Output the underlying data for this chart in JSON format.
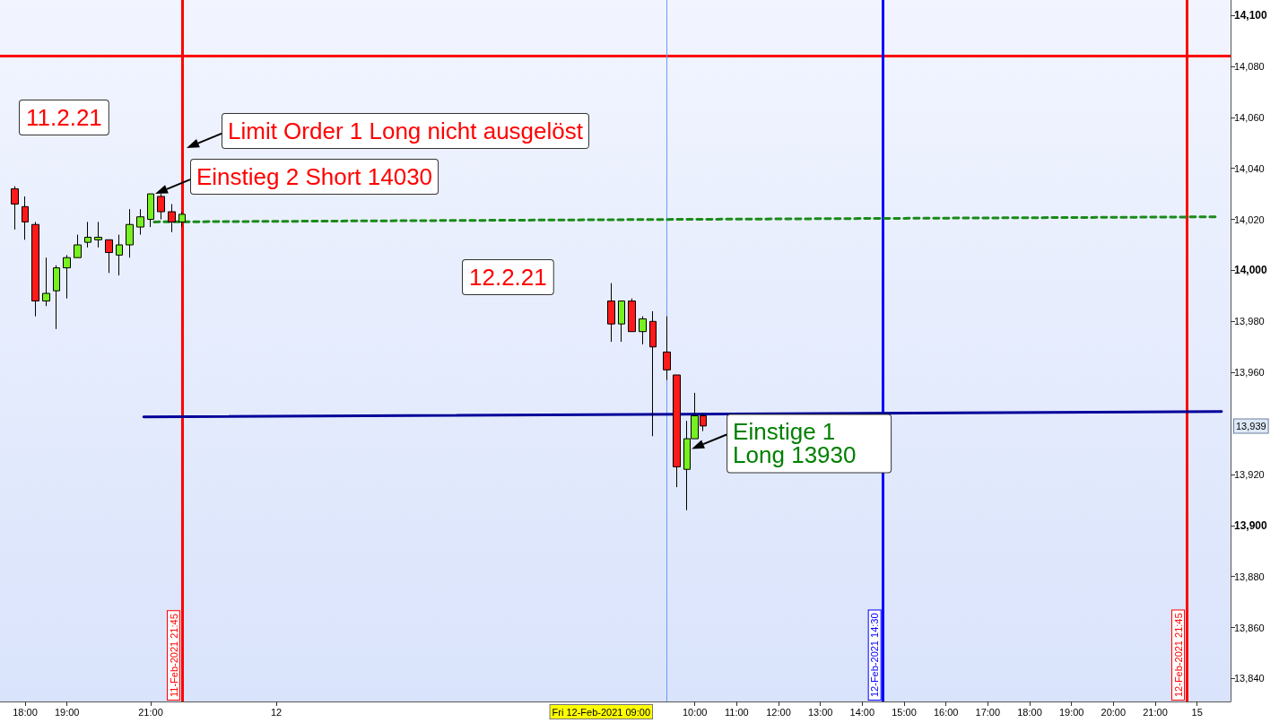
{
  "chart_data": {
    "type": "candlestick",
    "marker": "none",
    "xlim": [
      "2021-02-11T17:24",
      "2021-02-12T22:48"
    ],
    "xticks": [
      {
        "value": "2021-02-11T18:00",
        "label": "18:00"
      },
      {
        "value": "2021-02-11T19:00",
        "label": "19:00"
      },
      {
        "value": "2021-02-11T21:00",
        "label": "21:00"
      },
      {
        "value": "2021-02-12T00:00",
        "label": "12"
      },
      {
        "value": "2021-02-12T10:00",
        "label": "10:00"
      },
      {
        "value": "2021-02-12T11:00",
        "label": "11:00"
      },
      {
        "value": "2021-02-12T12:00",
        "label": "12:00"
      },
      {
        "value": "2021-02-12T13:00",
        "label": "13:00"
      },
      {
        "value": "2021-02-12T14:00",
        "label": "14:00"
      },
      {
        "value": "2021-02-12T15:00",
        "label": "15:00"
      },
      {
        "value": "2021-02-12T16:00",
        "label": "16:00"
      },
      {
        "value": "2021-02-12T17:00",
        "label": "17:00"
      },
      {
        "value": "2021-02-12T18:00",
        "label": "18:00"
      },
      {
        "value": "2021-02-12T19:00",
        "label": "19:00"
      },
      {
        "value": "2021-02-12T20:00",
        "label": "20:00"
      },
      {
        "value": "2021-02-12T21:00",
        "label": "21:00"
      },
      {
        "value": "2021-02-12T22:00",
        "label": "15"
      }
    ],
    "ylim": [
      13831,
      14106
    ],
    "yticks": [
      {
        "value": 13840,
        "label": "13,840"
      },
      {
        "value": 13860,
        "label": "13,860"
      },
      {
        "value": 13880,
        "label": "13,880"
      },
      {
        "value": 13900,
        "label": "13,900"
      },
      {
        "value": 13920,
        "label": "13,920"
      },
      {
        "value": 13960,
        "label": "13,960"
      },
      {
        "value": 13980,
        "label": "13,980"
      },
      {
        "value": 14000,
        "label": "14,000"
      },
      {
        "value": 14020,
        "label": "14,020"
      },
      {
        "value": 14040,
        "label": "14,040"
      },
      {
        "value": 14060,
        "label": "14,060"
      },
      {
        "value": 14080,
        "label": "14,080"
      },
      {
        "value": 14100,
        "label": "14,100"
      }
    ],
    "series": [
      {
        "x": [
          "2021-02-11T17:45",
          "2021-02-11T18:00",
          "2021-02-11T18:15",
          "2021-02-11T18:30",
          "2021-02-11T18:45",
          "2021-02-11T19:00",
          "2021-02-11T19:15",
          "2021-02-11T19:30",
          "2021-02-11T19:45",
          "2021-02-11T20:00",
          "2021-02-11T20:15",
          "2021-02-11T20:30",
          "2021-02-11T20:45",
          "2021-02-11T21:00",
          "2021-02-11T21:15",
          "2021-02-11T21:30",
          "2021-02-11T21:45",
          "2021-02-12T08:00",
          "2021-02-12T08:15",
          "2021-02-12T08:30",
          "2021-02-12T08:45",
          "2021-02-12T09:00",
          "2021-02-12T09:20",
          "2021-02-12T09:34",
          "2021-02-12T09:49",
          "2021-02-12T10:00",
          "2021-02-12T10:12"
        ],
        "ohlc": [
          [
            14032,
            14033,
            14016,
            14026
          ],
          [
            14025,
            14029,
            14012,
            14019
          ],
          [
            14018,
            14019,
            13982,
            13988
          ],
          [
            13988,
            14005,
            13986,
            13991
          ],
          [
            13992,
            14002,
            13977,
            14001
          ],
          [
            14001,
            14006,
            13989,
            14005
          ],
          [
            14005,
            14014,
            14005,
            14010
          ],
          [
            14011,
            14019,
            14009,
            14013
          ],
          [
            14012,
            14019,
            14009,
            14013
          ],
          [
            14012,
            14012,
            13999,
            14007
          ],
          [
            14006,
            14014,
            13998,
            14010
          ],
          [
            14010,
            14024,
            14005,
            14018
          ],
          [
            14017,
            14024,
            14014,
            14021
          ],
          [
            14020,
            14030,
            14017,
            14030
          ],
          [
            14029,
            14030,
            14020,
            14023
          ],
          [
            14023,
            14026,
            14015,
            14019
          ],
          [
            14019,
            14023,
            14017,
            14022
          ],
          [
            13988,
            13995,
            13972,
            13979
          ],
          [
            13979,
            13988,
            13972,
            13988
          ],
          [
            13988,
            13989,
            13976,
            13976
          ],
          [
            13976,
            13982,
            13971,
            13981
          ],
          [
            13980,
            13984,
            13935,
            13970
          ],
          [
            13968,
            13982,
            13957,
            13961
          ],
          [
            13959,
            13959,
            13915,
            13923
          ],
          [
            13922,
            13941,
            13906,
            13934
          ],
          [
            13934,
            13952,
            13934,
            13943
          ],
          [
            13943,
            13944,
            13937,
            13939
          ]
        ],
        "colors": [
          "#ff1a1a",
          "#ff1a1a",
          "#ff1a1a",
          "#77f020",
          "#77f020",
          "#77f020",
          "#77f020",
          "#77f020",
          "#77f020",
          "#ff1a1a",
          "#77f020",
          "#77f020",
          "#77f020",
          "#77f020",
          "#ff1a1a",
          "#ff1a1a",
          "#77f020",
          "#ff1a1a",
          "#77f020",
          "#ff1a1a",
          "#77f020",
          "#ff1a1a",
          "#ff1a1a",
          "#ff1a1a",
          "#77f020",
          "#77f020",
          "#ff1a1a"
        ]
      },
      {
        "type": "line",
        "x": [
          "2021-02-11T21:05",
          "2021-02-12T22:30"
        ],
        "values": [
          14019,
          14021
        ],
        "color": "#1a8a1a",
        "line_style": "dashed"
      },
      {
        "type": "line",
        "x": [
          "2021-02-11T20:50",
          "2021-02-12T22:35"
        ],
        "values": [
          13942.6,
          13944.7
        ],
        "color": "#000099",
        "line_style": "solid"
      }
    ],
    "ref_lines": [
      {
        "axis": "y",
        "value": 14084,
        "color": "#ff0000"
      },
      {
        "axis": "x",
        "value": "2021-02-11T21:45",
        "label": "11-Feb-2021 21:45",
        "color": "#ff0000"
      },
      {
        "axis": "x",
        "value": "2021-02-12T09:20",
        "color": "#6a9cff"
      },
      {
        "axis": "x",
        "value": "2021-02-12T14:30",
        "label": "12-Feb-2021 14:30",
        "color": "#0000ff"
      },
      {
        "axis": "x",
        "value": "2021-02-12T21:45",
        "label": "12-Feb-2021 21:45",
        "color": "#ff0000"
      }
    ],
    "annotations": [
      "11.2.21",
      {
        "text": "Limit Order 1 Long nicht ausgelöst",
        "x": "2021-02-11T21:45",
        "y": 14048
      },
      {
        "text": "Einstieg 2 Short 14030",
        "x": "2021-02-11T21:00",
        "y": 14030
      },
      "12.2.21",
      {
        "text": "Einstige 1 Long 13930",
        "x": "2021-02-12T09:49",
        "y": 13930
      },
      "Fri 12-Feb-2021 09:00",
      "13,939"
    ]
  }
}
